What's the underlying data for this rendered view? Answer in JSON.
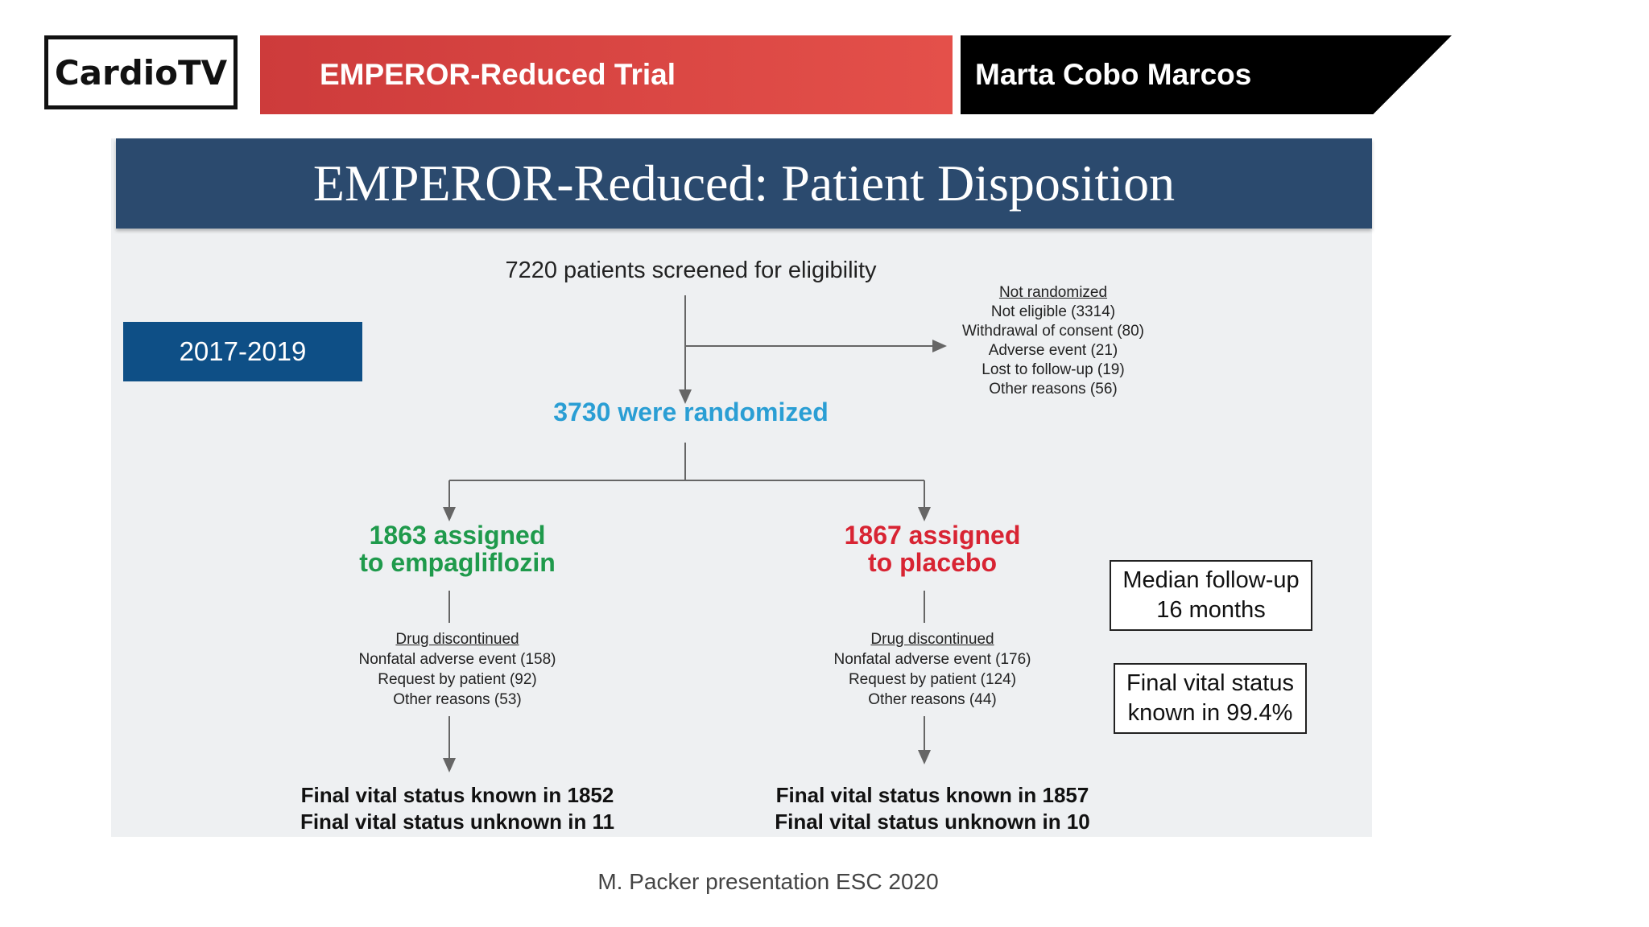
{
  "header": {
    "logo": "CardioTV",
    "title": "EMPEROR-Reduced Trial",
    "presenter": "Marta Cobo Marcos"
  },
  "slide": {
    "title": "EMPEROR-Reduced: Patient Disposition",
    "years": "2017-2019",
    "screened": "7220 patients screened for eligibility",
    "not_randomized": {
      "title": "Not randomized",
      "items": [
        "Not eligible (3314)",
        "Withdrawal of consent (80)",
        "Adverse event (21)",
        "Lost to follow-up (19)",
        "Other reasons (56)"
      ]
    },
    "randomized": "3730 were randomized",
    "empagliflozin": {
      "line1": "1863 assigned",
      "line2": "to empagliflozin",
      "discontinued_title": "Drug discontinued",
      "discontinued": [
        "Nonfatal adverse event (158)",
        "Request by patient (92)",
        "Other reasons (53)"
      ],
      "final_known": "Final vital status known in 1852",
      "final_unknown": "Final vital status unknown in 11"
    },
    "placebo": {
      "line1": "1867 assigned",
      "line2": "to placebo",
      "discontinued_title": "Drug discontinued",
      "discontinued": [
        "Nonfatal adverse event (176)",
        "Request by patient (124)",
        "Other reasons (44)"
      ],
      "final_known": "Final vital status known in 1857",
      "final_unknown": "Final vital status unknown in 10"
    },
    "median_box": {
      "line1": "Median follow-up",
      "line2": "16 months"
    },
    "vital_box": {
      "line1": "Final vital status",
      "line2": "known in 99.4%"
    }
  },
  "caption": "M. Packer presentation ESC 2020",
  "colors": {
    "red_bar": "#e4504a",
    "header_blue": "#2b4a6e",
    "years_blue": "#0e4f86",
    "randomized_blue": "#2a9ed4",
    "empa_green": "#1f9a4c",
    "placebo_red": "#d82433"
  }
}
